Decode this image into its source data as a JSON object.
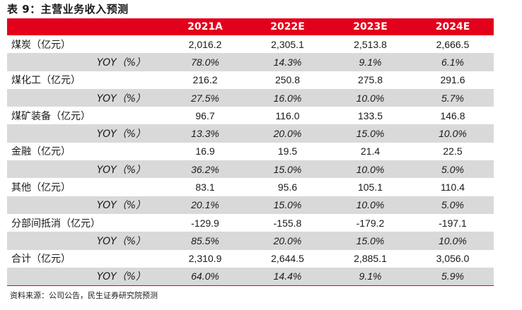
{
  "title": "表 9：主营业务收入预测",
  "headers": [
    "",
    "2021A",
    "2022E",
    "2023E",
    "2024E"
  ],
  "rows": [
    {
      "label": "煤炭（亿元）",
      "values": [
        "2,016.2",
        "2,305.1",
        "2,513.8",
        "2,666.5"
      ],
      "type": "main"
    },
    {
      "label": "YOY（%）",
      "values": [
        "78.0%",
        "14.3%",
        "9.1%",
        "6.1%"
      ],
      "type": "yoy"
    },
    {
      "label": "煤化工（亿元）",
      "values": [
        "216.2",
        "250.8",
        "275.8",
        "291.6"
      ],
      "type": "main"
    },
    {
      "label": "YOY（%）",
      "values": [
        "27.5%",
        "16.0%",
        "10.0%",
        "5.7%"
      ],
      "type": "yoy"
    },
    {
      "label": "煤矿装备（亿元）",
      "values": [
        "96.7",
        "116.0",
        "133.5",
        "146.8"
      ],
      "type": "main"
    },
    {
      "label": "YOY（%）",
      "values": [
        "13.3%",
        "20.0%",
        "15.0%",
        "10.0%"
      ],
      "type": "yoy"
    },
    {
      "label": "金融（亿元）",
      "values": [
        "16.9",
        "19.5",
        "21.4",
        "22.5"
      ],
      "type": "main"
    },
    {
      "label": "YOY（%）",
      "values": [
        "36.2%",
        "15.0%",
        "10.0%",
        "5.0%"
      ],
      "type": "yoy"
    },
    {
      "label": "其他（亿元）",
      "values": [
        "83.1",
        "95.6",
        "105.1",
        "110.4"
      ],
      "type": "main"
    },
    {
      "label": "YOY（%）",
      "values": [
        "20.1%",
        "15.0%",
        "10.0%",
        "5.0%"
      ],
      "type": "yoy"
    },
    {
      "label": "分部间抵消（亿元）",
      "values": [
        "-129.9",
        "-155.8",
        "-179.2",
        "-197.1"
      ],
      "type": "main"
    },
    {
      "label": "YOY（%）",
      "values": [
        "85.5%",
        "20.0%",
        "15.0%",
        "10.0%"
      ],
      "type": "yoy"
    },
    {
      "label": "合计（亿元）",
      "values": [
        "2,310.9",
        "2,644.5",
        "2,885.1",
        "3,056.0"
      ],
      "type": "main"
    },
    {
      "label": "YOY（%）",
      "values": [
        "64.0%",
        "14.4%",
        "9.1%",
        "5.9%"
      ],
      "type": "yoy"
    }
  ],
  "source": "资料来源：公司公告，民生证券研究院预测",
  "colors": {
    "header_bg": "#e3001b",
    "yoy_bg": "#d9d9d9"
  }
}
